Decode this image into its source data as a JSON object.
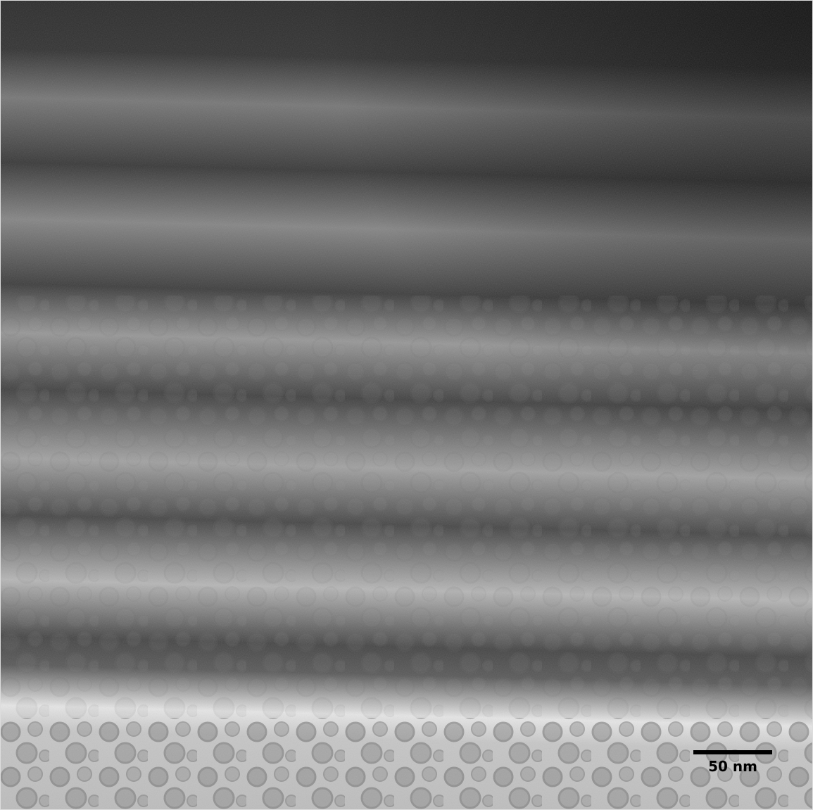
{
  "scale_bar": {
    "label": "50 nm"
  }
}
